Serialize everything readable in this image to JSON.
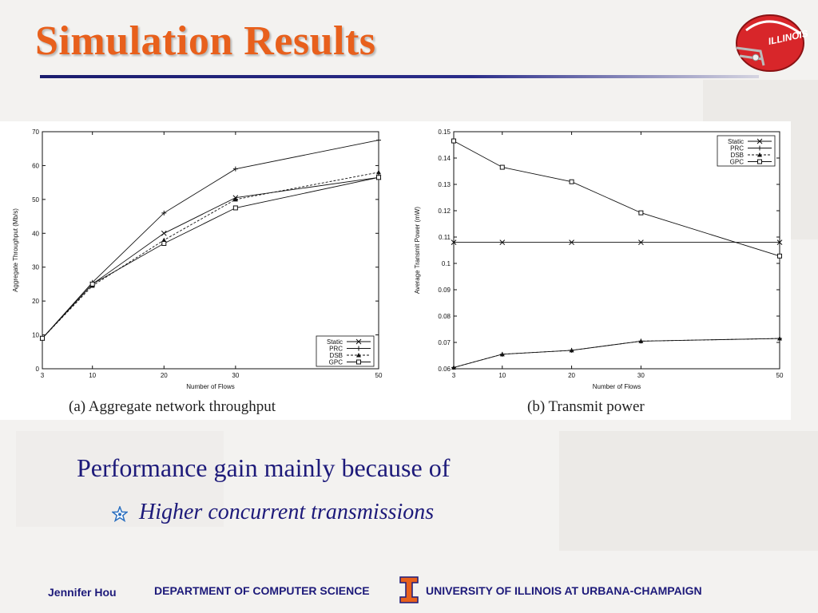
{
  "slide": {
    "title": "Simulation Results",
    "body_line": "Performance gain mainly because of",
    "bullet": "Higher concurrent transmissions",
    "footer_name": "Jennifer Hou",
    "footer_dept": "DEPARTMENT OF COMPUTER SCIENCE",
    "footer_univ": "UNIVERSITY OF ILLINOIS AT URBANA-CHAMPAIGN",
    "helmet_text": "ILLINOIS"
  },
  "colors": {
    "title": "#e8601c",
    "text": "#1d1a7a",
    "rule": "#1a1c6e",
    "illini_orange": "#e8601c",
    "helmet_red": "#d8262a"
  },
  "chart_data": [
    {
      "type": "line",
      "caption": "(a) Aggregate network throughput",
      "xlabel": "Number of Flows",
      "ylabel": "Aggregate Throughput (Mb/s)",
      "x": [
        3,
        10,
        20,
        30,
        50
      ],
      "xticks": [
        "3",
        "10",
        "20",
        "30",
        "50"
      ],
      "ylim": [
        0,
        70
      ],
      "yticks": [
        "0",
        "10",
        "20",
        "30",
        "40",
        "50",
        "60",
        "70"
      ],
      "legend_position": "bottom-right",
      "grid": false,
      "series": [
        {
          "name": "Static",
          "marker": "x",
          "dash": "",
          "values": [
            9,
            25,
            40,
            50.5,
            56.5
          ]
        },
        {
          "name": "PRC",
          "marker": "+",
          "dash": "",
          "values": [
            9,
            25.5,
            46,
            59,
            67.5
          ]
        },
        {
          "name": "DSB",
          "marker": "triangle",
          "dash": "3,2",
          "values": [
            9,
            24.5,
            38,
            50,
            58
          ]
        },
        {
          "name": "GPC",
          "marker": "square",
          "dash": "",
          "values": [
            9,
            25,
            37,
            47.5,
            56.5
          ]
        }
      ]
    },
    {
      "type": "line",
      "caption": "(b) Transmit power",
      "xlabel": "Number of Flows",
      "ylabel": "Average Transmit Power (mW)",
      "x": [
        3,
        10,
        20,
        30,
        50
      ],
      "xticks": [
        "3",
        "10",
        "20",
        "30",
        "50"
      ],
      "ylim": [
        0.06,
        0.15
      ],
      "yticks": [
        "0.06",
        "0.07",
        "0.08",
        "0.09",
        "0.1",
        "0.11",
        "0.12",
        "0.13",
        "0.14",
        "0.15"
      ],
      "legend_position": "top-right",
      "grid": false,
      "series": [
        {
          "name": "Static",
          "marker": "x",
          "dash": "",
          "values": [
            0.108,
            0.108,
            0.108,
            0.108,
            0.108
          ]
        },
        {
          "name": "PRC",
          "marker": "+",
          "dash": "",
          "values": [
            0.0605,
            0.0655,
            0.067,
            0.0705,
            0.0715
          ]
        },
        {
          "name": "DSB",
          "marker": "triangle",
          "dash": "3,2",
          "values": [
            0.0605,
            0.0655,
            0.067,
            0.0705,
            0.0715
          ]
        },
        {
          "name": "GPC",
          "marker": "square",
          "dash": "",
          "values": [
            0.1465,
            0.1365,
            0.131,
            0.1192,
            0.1028
          ]
        }
      ]
    }
  ]
}
